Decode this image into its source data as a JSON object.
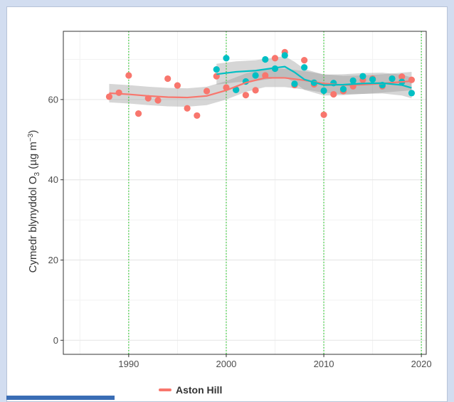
{
  "chart_data": {
    "type": "scatter",
    "title": "",
    "xlabel": "",
    "ylabel": "Cymedr blynyddol O",
    "ylabel_sub": "3",
    "ylabel_unit_pre": " (µg m",
    "ylabel_unit_sup": "−3",
    "ylabel_unit_post": ")",
    "xlim": [
      1983.3,
      2020.5
    ],
    "ylim": [
      -3.5,
      77
    ],
    "x_ticks": [
      1990,
      2000,
      2010,
      2020
    ],
    "y_ticks": [
      0,
      20,
      40,
      60
    ],
    "grid": true,
    "vlines": [
      1990,
      2000,
      2010,
      2020
    ],
    "legend_placement": "bottom",
    "series": [
      {
        "name": "Aston Hill",
        "color": "#f8766d",
        "points": [
          [
            1988,
            60.7
          ],
          [
            1989,
            61.7
          ],
          [
            1990,
            66.0
          ],
          [
            1991,
            56.5
          ],
          [
            1992,
            60.3
          ],
          [
            1993,
            59.8
          ],
          [
            1994,
            65.2
          ],
          [
            1995,
            63.5
          ],
          [
            1996,
            57.8
          ],
          [
            1997,
            56.0
          ],
          [
            1998,
            62.1
          ],
          [
            1999,
            65.8
          ],
          [
            2000,
            63.0
          ],
          [
            2001,
            62.5
          ],
          [
            2002,
            61.1
          ],
          [
            2003,
            62.3
          ],
          [
            2004,
            66.0
          ],
          [
            2005,
            70.3
          ],
          [
            2006,
            71.8
          ],
          [
            2007,
            63.6
          ],
          [
            2008,
            69.8
          ],
          [
            2009,
            63.8
          ],
          [
            2010,
            56.2
          ],
          [
            2011,
            61.3
          ],
          [
            2012,
            62.1
          ],
          [
            2013,
            63.3
          ],
          [
            2014,
            64.9
          ],
          [
            2015,
            65.2
          ],
          [
            2016,
            63.3
          ],
          [
            2017,
            65.2
          ],
          [
            2018,
            65.7
          ],
          [
            2019,
            64.9
          ]
        ],
        "smooth": [
          [
            1988,
            61.6
          ],
          [
            1990,
            61.3
          ],
          [
            1992,
            60.9
          ],
          [
            1994,
            60.6
          ],
          [
            1996,
            60.5
          ],
          [
            1998,
            60.9
          ],
          [
            2000,
            62.3
          ],
          [
            2002,
            64.2
          ],
          [
            2004,
            65.4
          ],
          [
            2006,
            65.4
          ],
          [
            2008,
            64.8
          ],
          [
            2010,
            64.0
          ],
          [
            2012,
            63.6
          ],
          [
            2014,
            63.7
          ],
          [
            2016,
            64.0
          ],
          [
            2018,
            64.4
          ],
          [
            2019,
            64.6
          ]
        ],
        "band": 2.3
      },
      {
        "name": "",
        "color": "#00bfc4",
        "points": [
          [
            1999,
            67.5
          ],
          [
            2000,
            70.3
          ],
          [
            2001,
            62.4
          ],
          [
            2002,
            64.5
          ],
          [
            2003,
            66.0
          ],
          [
            2004,
            70.0
          ],
          [
            2005,
            67.7
          ],
          [
            2006,
            71.0
          ],
          [
            2007,
            63.9
          ],
          [
            2008,
            68.0
          ],
          [
            2009,
            64.2
          ],
          [
            2010,
            62.2
          ],
          [
            2011,
            64.1
          ],
          [
            2012,
            62.6
          ],
          [
            2013,
            64.7
          ],
          [
            2014,
            65.8
          ],
          [
            2015,
            65.0
          ],
          [
            2016,
            63.6
          ],
          [
            2017,
            65.2
          ],
          [
            2018,
            64.4
          ],
          [
            2019,
            61.6
          ]
        ],
        "smooth": [
          [
            1999,
            66.3
          ],
          [
            2001,
            66.9
          ],
          [
            2003,
            67.2
          ],
          [
            2005,
            67.9
          ],
          [
            2006,
            68.2
          ],
          [
            2007,
            66.8
          ],
          [
            2008,
            65.0
          ],
          [
            2010,
            63.6
          ],
          [
            2012,
            63.7
          ],
          [
            2014,
            64.0
          ],
          [
            2016,
            64.1
          ],
          [
            2018,
            63.6
          ],
          [
            2019,
            62.9
          ]
        ],
        "band": 2.6
      }
    ],
    "legend": [
      "Aston Hill"
    ]
  }
}
